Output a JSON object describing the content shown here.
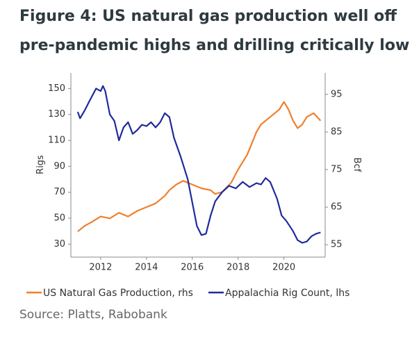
{
  "chart_data": {
    "type": "line",
    "title": "Figure 4: US natural gas production well off",
    "subtitle": "pre-pandemic highs and drilling critically low",
    "source": "Source: Platts, Rabobank",
    "y_label": "Rigs",
    "y2_label": "Bcf",
    "xlim": [
      2010.7,
      2021.8
    ],
    "xticks": [
      2012,
      2014,
      2016,
      2018,
      2020
    ],
    "ylim": [
      20,
      162
    ],
    "yticks": [
      30,
      50,
      70,
      90,
      110,
      130,
      150
    ],
    "y2lim": [
      51.7,
      100.7
    ],
    "y2ticks": [
      55,
      65,
      75,
      85,
      95
    ],
    "series": [
      {
        "name": "US Natural Gas Production, rhs",
        "color": "#f07f2c",
        "axis": "y2",
        "x": [
          2011.0,
          2011.3,
          2011.6,
          2012.0,
          2012.4,
          2012.8,
          2013.2,
          2013.6,
          2014.0,
          2014.4,
          2014.8,
          2015.0,
          2015.3,
          2015.6,
          2016.0,
          2016.4,
          2016.8,
          2017.0,
          2017.3,
          2017.7,
          2018.0,
          2018.4,
          2018.8,
          2019.0,
          2019.4,
          2019.8,
          2020.0,
          2020.2,
          2020.4,
          2020.6,
          2020.8,
          2021.0,
          2021.3,
          2021.6
        ],
        "values": [
          58.5,
          60,
          61,
          62.5,
          62,
          63.5,
          62.5,
          64,
          65,
          66,
          68,
          69.5,
          71,
          72,
          71,
          70,
          69.5,
          68.5,
          69,
          71.5,
          75,
          79,
          85,
          87,
          89,
          91,
          93,
          91,
          88,
          86,
          87,
          89,
          90,
          88
        ]
      },
      {
        "name": "Appalachia Rig Count, lhs",
        "color": "#1f2a9c",
        "x": [
          2011.0,
          2011.1,
          2011.3,
          2011.5,
          2011.8,
          2012.0,
          2012.1,
          2012.2,
          2012.4,
          2012.6,
          2012.8,
          2013.0,
          2013.2,
          2013.4,
          2013.6,
          2013.8,
          2014.0,
          2014.2,
          2014.4,
          2014.6,
          2014.8,
          2015.0,
          2015.2,
          2015.5,
          2015.8,
          2016.0,
          2016.2,
          2016.4,
          2016.6,
          2016.8,
          2017.0,
          2017.3,
          2017.6,
          2017.9,
          2018.2,
          2018.5,
          2018.8,
          2019.0,
          2019.2,
          2019.4,
          2019.7,
          2019.9,
          2020.1,
          2020.4,
          2020.6,
          2020.8,
          2021.0,
          2021.2,
          2021.4,
          2021.6
        ],
        "values": [
          132,
          127,
          133,
          140,
          150,
          148,
          152,
          148,
          130,
          125,
          110,
          120,
          124,
          115,
          118,
          122,
          121,
          124,
          120,
          124,
          131,
          128,
          112,
          97,
          80,
          62,
          44,
          37,
          38,
          52,
          63,
          70,
          75,
          73,
          78,
          74,
          77,
          76,
          81,
          78,
          65,
          52,
          48,
          40,
          33,
          31,
          32,
          36,
          38,
          39
        ]
      }
    ]
  }
}
